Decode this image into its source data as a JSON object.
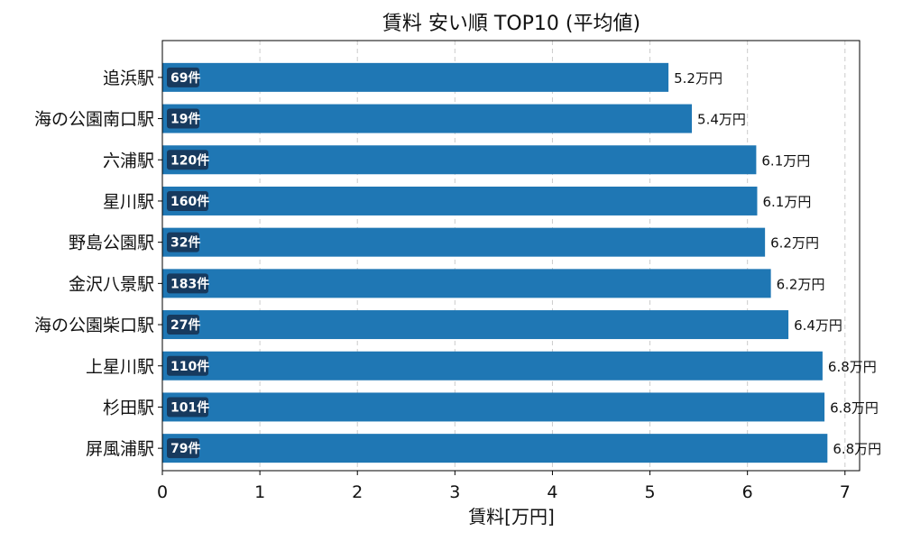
{
  "chart_data": {
    "type": "bar",
    "orientation": "horizontal",
    "title": "賃料 安い順 TOP10 (平均値)",
    "xlabel": "賃料[万円]",
    "ylabel": "",
    "xlim": [
      0,
      7.15
    ],
    "xticks": [
      0,
      1,
      2,
      3,
      4,
      5,
      6,
      7
    ],
    "grid": "x-dashed",
    "categories": [
      "追浜駅",
      "海の公園南口駅",
      "六浦駅",
      "星川駅",
      "野島公園駅",
      "金沢八景駅",
      "海の公園柴口駅",
      "上星川駅",
      "杉田駅",
      "屏風浦駅"
    ],
    "values": [
      5.19,
      5.43,
      6.09,
      6.1,
      6.18,
      6.24,
      6.42,
      6.77,
      6.79,
      6.82
    ],
    "value_labels": [
      "5.2万円",
      "5.4万円",
      "6.1万円",
      "6.1万円",
      "6.2万円",
      "6.2万円",
      "6.4万円",
      "6.8万円",
      "6.8万円",
      "6.8万円"
    ],
    "counts": [
      "69件",
      "19件",
      "120件",
      "160件",
      "32件",
      "183件",
      "27件",
      "110件",
      "101件",
      "79件"
    ],
    "colors": {
      "bar": "#1f77b4",
      "badge": "#173a5e",
      "grid": "#cccccc"
    }
  }
}
